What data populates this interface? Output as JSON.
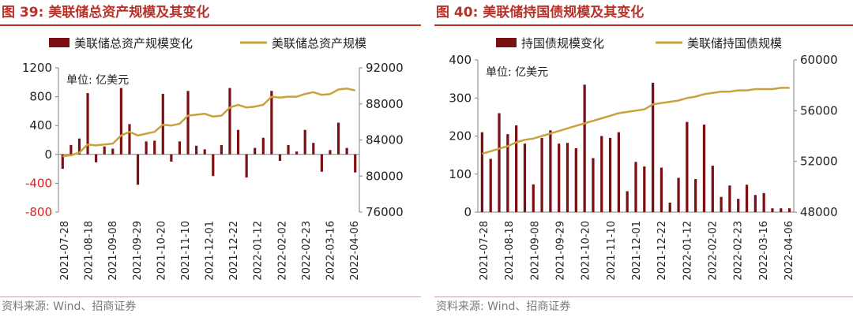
{
  "colors": {
    "title_red": "#B8322A",
    "bar_brown": "#7A1014",
    "line_gold": "#C8A23C",
    "neg_label_red": "#E02020",
    "axis_gray": "#808080",
    "text_dark": "#222222"
  },
  "left": {
    "title": "图 39:  美联储总资产规模及其变化",
    "unit_note": "单位: 亿美元",
    "source": "资料来源: Wind、招商证券"
  },
  "right": {
    "title": "图 40:  美联储持国债规模及其变化",
    "unit_note": "单位: 亿美元",
    "source": "资料来源: Wind、招商证券"
  },
  "chart_data": [
    {
      "type": "bar",
      "title": "美联储总资产规模及其变化",
      "legend": [
        "美联储总资产规模变化",
        "美联储总资产规模"
      ],
      "legend_position": "top",
      "x_tick_labels": [
        "2021-07-28",
        "2021-08-18",
        "2021-09-08",
        "2021-09-29",
        "2021-10-20",
        "2021-11-10",
        "2021-12-01",
        "2021-12-22",
        "2022-01-12",
        "2022-02-02",
        "2022-02-23",
        "2022-03-16",
        "2022-04-06"
      ],
      "y_left": {
        "min": -800,
        "max": 1200,
        "ticks": [
          -800,
          -400,
          0,
          400,
          800,
          1200
        ],
        "tick_labels": [
          "-800",
          "-400",
          "0",
          "400",
          "800",
          "1200"
        ]
      },
      "y_right": {
        "min": 76000,
        "max": 92000,
        "ticks": [
          76000,
          80000,
          84000,
          88000,
          92000
        ],
        "tick_labels": [
          "76000",
          "80000",
          "84000",
          "88000",
          "92000"
        ]
      },
      "series": [
        {
          "name": "美联储总资产规模变化",
          "kind": "bar",
          "axis": "left",
          "values": [
            -200,
            130,
            220,
            850,
            -110,
            110,
            80,
            920,
            420,
            -420,
            180,
            190,
            840,
            -100,
            180,
            880,
            120,
            70,
            -300,
            130,
            920,
            340,
            -320,
            90,
            230,
            880,
            -90,
            130,
            40,
            340,
            160,
            -240,
            60,
            440,
            90,
            -250
          ]
        },
        {
          "name": "美联储总资产规模",
          "kind": "line",
          "axis": "right",
          "values": [
            82200,
            82300,
            82600,
            83500,
            83400,
            83500,
            83600,
            84500,
            84900,
            84500,
            84700,
            84900,
            85700,
            85600,
            85800,
            86700,
            86800,
            86900,
            86600,
            86700,
            87600,
            87900,
            87600,
            87700,
            87900,
            88800,
            88700,
            88800,
            88800,
            89100,
            89300,
            89000,
            89100,
            89600,
            89700,
            89500
          ]
        }
      ]
    },
    {
      "type": "bar",
      "title": "美联储持国债规模及其变化",
      "legend": [
        "持国债规模变化",
        "美联储持国债规模"
      ],
      "legend_position": "top",
      "x_tick_labels": [
        "2021-07-28",
        "2021-08-18",
        "2021-09-08",
        "2021-09-29",
        "2021-10-20",
        "2021-11-10",
        "2021-12-01",
        "2021-12-22",
        "2022-01-12",
        "2022-02-02",
        "2022-02-23",
        "2022-03-16",
        "2022-04-06"
      ],
      "y_left": {
        "min": 0,
        "max": 400,
        "ticks": [
          0,
          100,
          200,
          300,
          400
        ],
        "tick_labels": [
          "0",
          "100",
          "200",
          "300",
          "400"
        ]
      },
      "y_right": {
        "min": 48000,
        "max": 60000,
        "ticks": [
          48000,
          52000,
          56000,
          60000
        ],
        "tick_labels": [
          "48000",
          "52000",
          "56000",
          "60000"
        ]
      },
      "series": [
        {
          "name": "持国债规模变化",
          "kind": "bar",
          "axis": "left",
          "values": [
            210,
            140,
            260,
            205,
            228,
            180,
            73,
            195,
            215,
            180,
            182,
            168,
            335,
            142,
            200,
            195,
            210,
            55,
            132,
            120,
            340,
            117,
            25,
            90,
            237,
            87,
            230,
            122,
            40,
            70,
            35,
            72,
            45,
            50,
            10,
            10,
            10
          ]
        },
        {
          "name": "美联储持国债规模",
          "kind": "line",
          "axis": "right",
          "values": [
            52600,
            52800,
            53000,
            53200,
            53500,
            53700,
            53800,
            54000,
            54200,
            54400,
            54600,
            54800,
            55000,
            55200,
            55400,
            55600,
            55800,
            55900,
            56000,
            56100,
            56500,
            56600,
            56700,
            56800,
            57000,
            57100,
            57300,
            57400,
            57500,
            57500,
            57600,
            57600,
            57700,
            57700,
            57700,
            57800,
            57800
          ]
        }
      ]
    }
  ]
}
